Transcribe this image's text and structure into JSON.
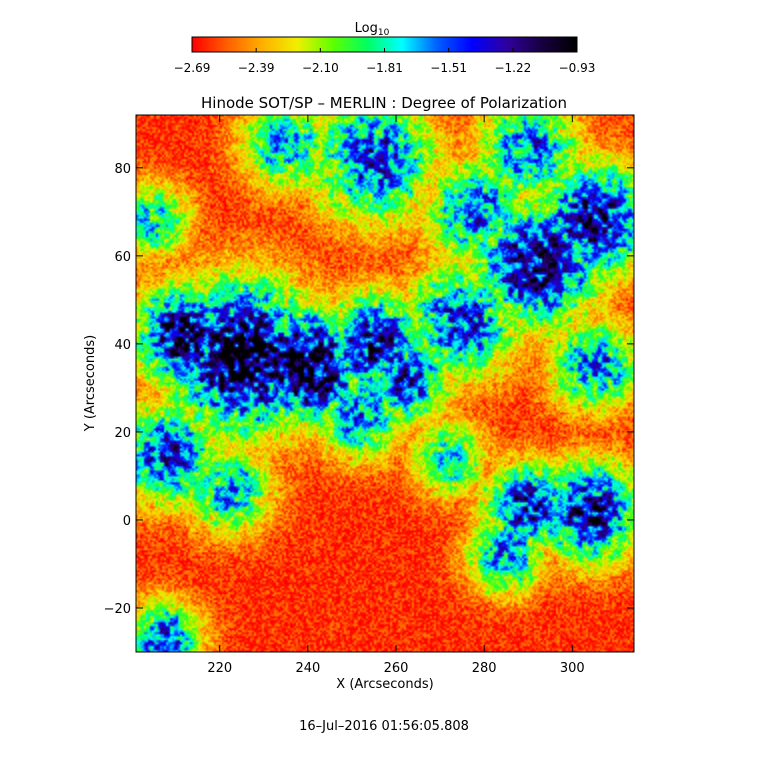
{
  "chart_data": {
    "type": "heatmap",
    "title": "Hinode SOT/SP – MERLIN : Degree of Polarization",
    "xlabel": "X (Arcseconds)",
    "ylabel": "Y (Arcseconds)",
    "xlim": [
      201,
      314
    ],
    "ylim": [
      -30,
      92
    ],
    "x_ticks": [
      220,
      240,
      260,
      280,
      300
    ],
    "y_ticks": [
      -20,
      0,
      20,
      40,
      60,
      80
    ],
    "colorbar": {
      "label_main": "Log",
      "label_sub": "10",
      "range": [
        -2.69,
        -0.93
      ],
      "ticks": [
        "−2.69",
        "−2.39",
        "−2.10",
        "−1.81",
        "−1.51",
        "−1.22",
        "−0.93"
      ],
      "colors": [
        "#ff0000",
        "#ff6000",
        "#ffb000",
        "#f0f000",
        "#60ff00",
        "#00ff60",
        "#00ffff",
        "#0060ff",
        "#0000ff",
        "#3000a0",
        "#180040",
        "#000000"
      ]
    },
    "timestamp": "16–Jul–2016 01:56:05.808",
    "strong_regions": [
      {
        "x": 225,
        "y": 37,
        "r": 12,
        "v": -1.05
      },
      {
        "x": 240,
        "y": 35,
        "r": 9,
        "v": -1.0
      },
      {
        "x": 212,
        "y": 42,
        "r": 8,
        "v": -1.2
      },
      {
        "x": 255,
        "y": 40,
        "r": 8,
        "v": -1.3
      },
      {
        "x": 262,
        "y": 32,
        "r": 7,
        "v": -1.45
      },
      {
        "x": 252,
        "y": 24,
        "r": 7,
        "v": -1.6
      },
      {
        "x": 275,
        "y": 45,
        "r": 9,
        "v": -1.5
      },
      {
        "x": 292,
        "y": 58,
        "r": 10,
        "v": -1.25
      },
      {
        "x": 305,
        "y": 68,
        "r": 9,
        "v": -1.3
      },
      {
        "x": 278,
        "y": 70,
        "r": 8,
        "v": -1.6
      },
      {
        "x": 255,
        "y": 82,
        "r": 10,
        "v": -1.5
      },
      {
        "x": 235,
        "y": 85,
        "r": 7,
        "v": -1.7
      },
      {
        "x": 290,
        "y": 84,
        "r": 8,
        "v": -1.6
      },
      {
        "x": 208,
        "y": 15,
        "r": 8,
        "v": -1.5
      },
      {
        "x": 222,
        "y": 7,
        "r": 7,
        "v": -1.7
      },
      {
        "x": 290,
        "y": 3,
        "r": 7,
        "v": -1.4
      },
      {
        "x": 304,
        "y": 2,
        "r": 8,
        "v": -1.3
      },
      {
        "x": 285,
        "y": -8,
        "r": 6,
        "v": -1.6
      },
      {
        "x": 272,
        "y": 14,
        "r": 6,
        "v": -1.8
      },
      {
        "x": 207,
        "y": -27,
        "r": 6,
        "v": -1.5
      },
      {
        "x": 205,
        "y": 68,
        "r": 6,
        "v": -1.8
      },
      {
        "x": 305,
        "y": 35,
        "r": 7,
        "v": -1.6
      }
    ]
  }
}
